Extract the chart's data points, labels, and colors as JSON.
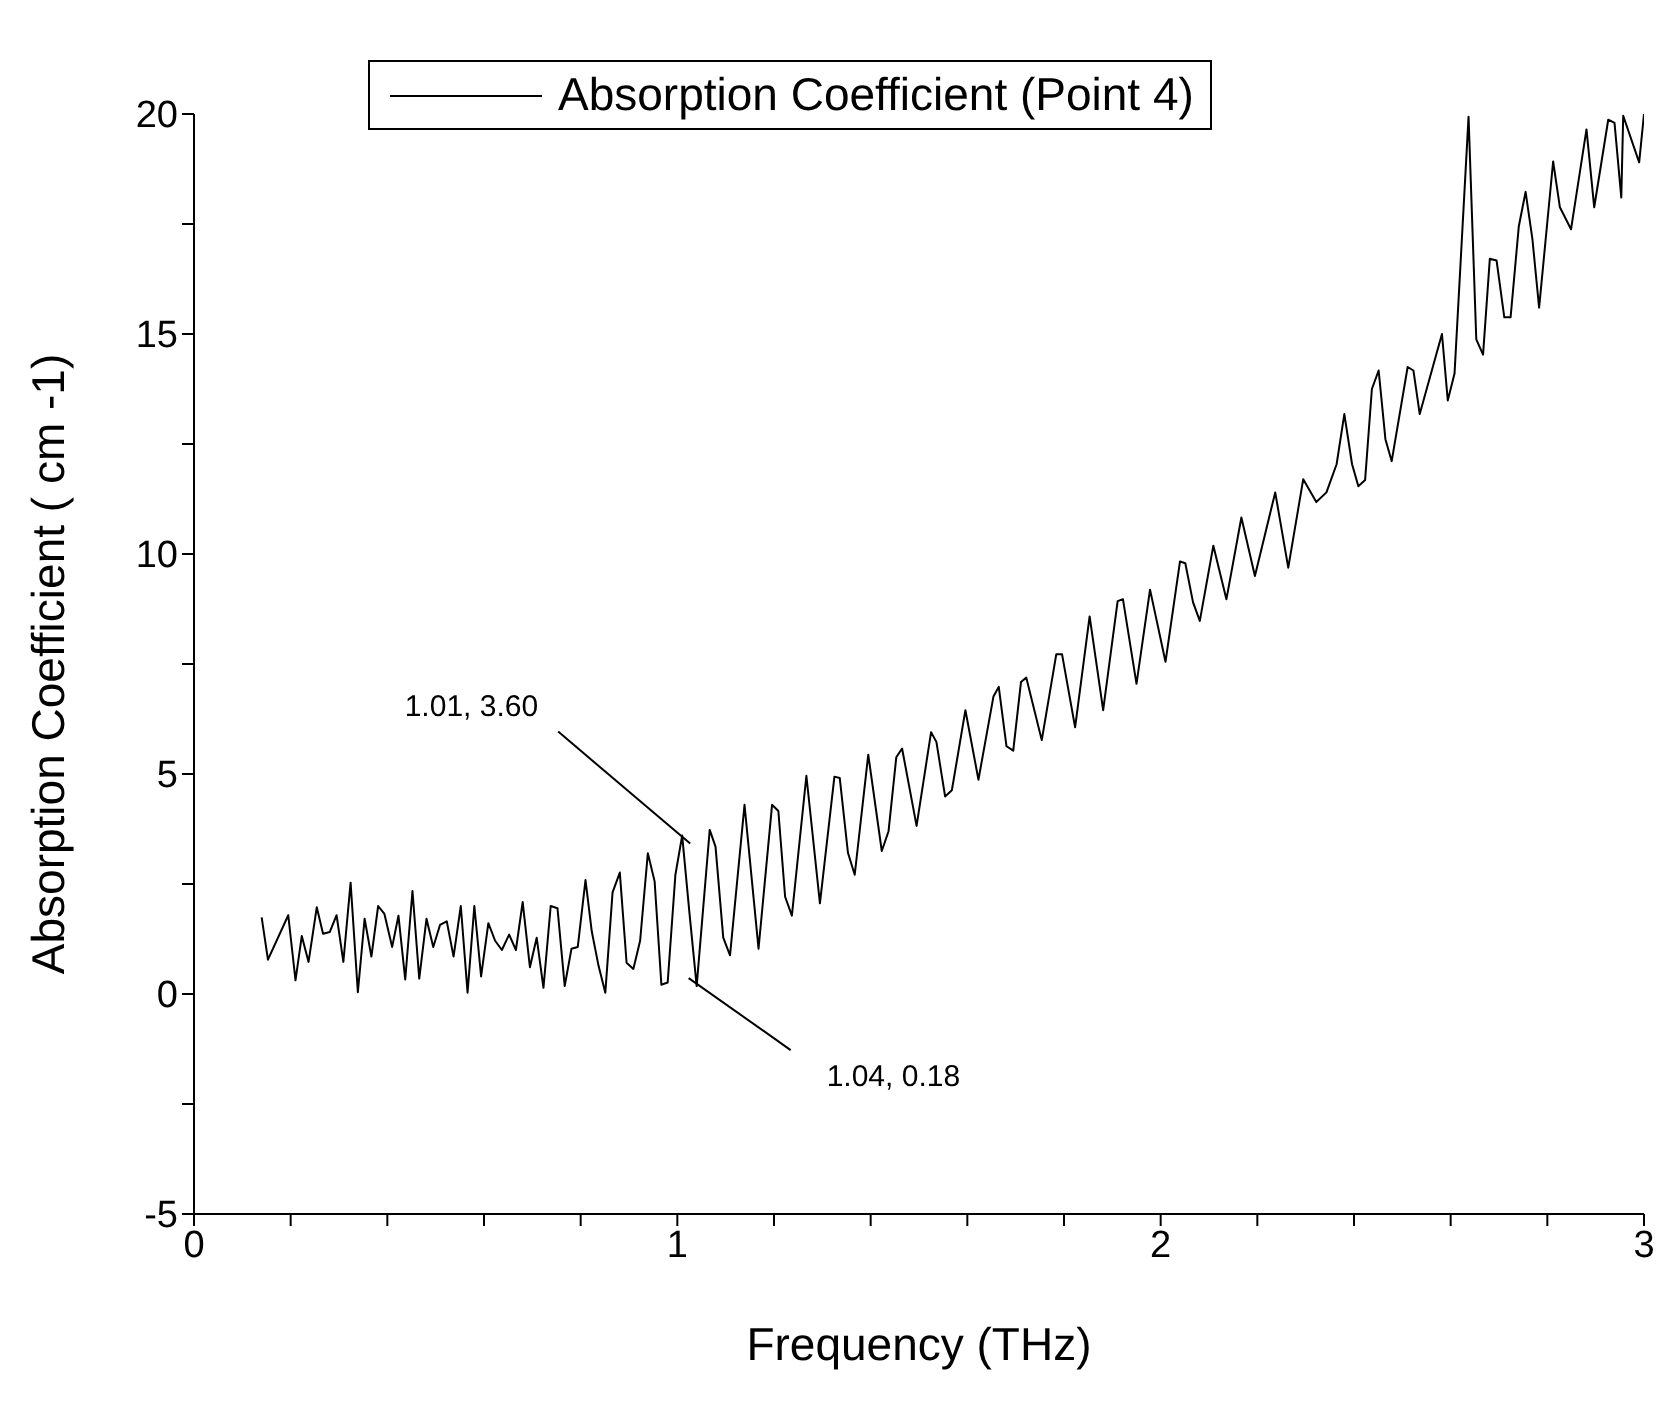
{
  "chart_data": {
    "type": "line",
    "xlabel": "Frequency (THz)",
    "ylabel": "Absorption Coefficient ( cm -1)",
    "xlim": [
      0,
      3
    ],
    "ylim": [
      -5,
      20
    ],
    "xticks": [
      0,
      {
        "value": 0.2,
        "label": null
      },
      {
        "value": 0.4,
        "label": null
      },
      {
        "value": 0.6,
        "label": null
      },
      {
        "value": 0.8,
        "label": null
      },
      1,
      {
        "value": 1.2,
        "label": null
      },
      {
        "value": 1.4,
        "label": null
      },
      {
        "value": 1.6,
        "label": null
      },
      {
        "value": 1.8,
        "label": null
      },
      2,
      {
        "value": 2.2,
        "label": null
      },
      {
        "value": 2.4,
        "label": null
      },
      {
        "value": 2.6,
        "label": null
      },
      {
        "value": 2.8,
        "label": null
      },
      3
    ],
    "yticks": [
      -5,
      {
        "value": -2.5,
        "label": null
      },
      0,
      {
        "value": 2.5,
        "label": null
      },
      5,
      {
        "value": 7.5,
        "label": null
      },
      10,
      {
        "value": 12.5,
        "label": null
      },
      15,
      {
        "value": 17.5,
        "label": null
      },
      20
    ],
    "legend": "top",
    "grid": false,
    "marker": "none",
    "line_style": "solid",
    "annotations": [
      {
        "text": "1.01, 3.60",
        "x": 1.01,
        "y": 3.6
      },
      {
        "text": "1.04, 0.18",
        "x": 1.04,
        "y": 0.18
      }
    ],
    "series": [
      {
        "name": "Absorption Coefficient (Point 4)",
        "color": "#000000",
        "x": [
          0.14,
          0.153,
          0.195,
          0.21,
          0.223,
          0.237,
          0.254,
          0.267,
          0.281,
          0.295,
          0.309,
          0.324,
          0.339,
          0.353,
          0.367,
          0.381,
          0.394,
          0.41,
          0.423,
          0.437,
          0.452,
          0.466,
          0.481,
          0.495,
          0.509,
          0.523,
          0.537,
          0.552,
          0.566,
          0.58,
          0.594,
          0.609,
          0.623,
          0.637,
          0.652,
          0.666,
          0.68,
          0.695,
          0.709,
          0.723,
          0.738,
          0.752,
          0.767,
          0.781,
          0.794,
          0.81,
          0.823,
          0.837,
          0.851,
          0.866,
          0.881,
          0.895,
          0.909,
          0.923,
          0.939,
          0.953,
          0.967,
          0.98,
          0.996,
          1.01,
          1.025,
          1.04,
          1.067,
          1.079,
          1.095,
          1.109,
          1.139,
          1.168,
          1.196,
          1.209,
          1.223,
          1.237,
          1.267,
          1.295,
          1.325,
          1.336,
          1.353,
          1.367,
          1.395,
          1.423,
          1.437,
          1.453,
          1.465,
          1.495,
          1.525,
          1.536,
          1.554,
          1.568,
          1.596,
          1.623,
          1.654,
          1.665,
          1.681,
          1.695,
          1.711,
          1.722,
          1.754,
          1.784,
          1.796,
          1.823,
          1.853,
          1.881,
          1.911,
          1.922,
          1.95,
          1.978,
          2.01,
          2.04,
          2.051,
          2.067,
          2.081,
          2.109,
          2.136,
          2.167,
          2.195,
          2.237,
          2.264,
          2.295,
          2.322,
          2.343,
          2.364,
          2.38,
          2.396,
          2.409,
          2.423,
          2.437,
          2.451,
          2.465,
          2.478,
          2.511,
          2.523,
          2.536,
          2.582,
          2.594,
          2.608,
          2.637,
          2.653,
          2.667,
          2.681,
          2.695,
          2.711,
          2.724,
          2.741,
          2.755,
          2.769,
          2.783,
          2.812,
          2.826,
          2.849,
          2.881,
          2.897,
          2.926,
          2.939,
          2.953,
          2.957,
          2.99,
          3.0
        ],
        "values": [
          1.74,
          0.78,
          1.79,
          0.31,
          1.32,
          0.73,
          1.97,
          1.37,
          1.41,
          1.79,
          0.73,
          2.53,
          0.04,
          1.71,
          0.85,
          2.0,
          1.82,
          1.07,
          1.78,
          0.33,
          2.34,
          0.35,
          1.71,
          1.07,
          1.57,
          1.65,
          0.85,
          2.0,
          0.03,
          2.0,
          0.4,
          1.61,
          1.21,
          1.0,
          1.35,
          1.0,
          2.09,
          0.61,
          1.28,
          0.14,
          2.0,
          1.95,
          0.18,
          1.03,
          1.07,
          2.59,
          1.42,
          0.64,
          0.03,
          2.31,
          2.76,
          0.71,
          0.57,
          1.21,
          3.2,
          2.56,
          0.21,
          0.26,
          2.71,
          3.6,
          1.85,
          0.18,
          3.73,
          3.35,
          1.28,
          0.88,
          4.3,
          1.03,
          4.3,
          4.16,
          2.21,
          1.78,
          4.96,
          2.06,
          4.94,
          4.91,
          3.21,
          2.71,
          5.44,
          3.25,
          3.7,
          5.38,
          5.58,
          3.82,
          5.95,
          5.73,
          4.49,
          4.63,
          6.45,
          4.87,
          6.76,
          6.98,
          5.63,
          5.53,
          7.09,
          7.19,
          5.77,
          7.72,
          7.72,
          6.06,
          8.58,
          6.45,
          8.93,
          8.97,
          7.05,
          9.19,
          7.55,
          9.83,
          9.79,
          8.9,
          8.48,
          10.19,
          8.97,
          10.83,
          9.5,
          11.4,
          9.69,
          11.7,
          11.18,
          11.4,
          12.04,
          13.18,
          12.04,
          11.54,
          11.68,
          13.75,
          14.17,
          12.61,
          12.11,
          14.25,
          14.17,
          13.18,
          15.0,
          13.49,
          14.1,
          19.94,
          14.88,
          14.53,
          16.71,
          16.67,
          15.38,
          15.38,
          17.45,
          18.23,
          17.17,
          15.6,
          18.92,
          17.88,
          17.38,
          19.65,
          17.88,
          19.87,
          19.8,
          18.1,
          19.96,
          18.9,
          20.0
        ]
      }
    ]
  }
}
